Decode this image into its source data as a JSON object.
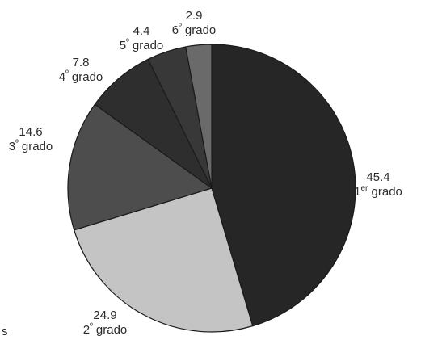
{
  "chart_data": {
    "type": "pie",
    "start_angle_deg": 0,
    "direction": "clockwise",
    "slices": [
      {
        "value": 45.4,
        "value_label": "45.4",
        "name": "1",
        "suffix": "er",
        "rest": " grado",
        "color": "#262626"
      },
      {
        "value": 24.9,
        "value_label": "24.9",
        "name": "2",
        "suffix": "º",
        "rest": " grado",
        "color": "#c4c4c4"
      },
      {
        "value": 14.6,
        "value_label": "14.6",
        "name": "3",
        "suffix": "º",
        "rest": " grado",
        "color": "#4d4d4d"
      },
      {
        "value": 7.8,
        "value_label": "7.8",
        "name": "4",
        "suffix": "º",
        "rest": " grado",
        "color": "#2e2e2e"
      },
      {
        "value": 4.4,
        "value_label": "4.4",
        "name": "5",
        "suffix": "º",
        "rest": " grado",
        "color": "#383838"
      },
      {
        "value": 2.9,
        "value_label": "2.9",
        "name": "6",
        "suffix": "º",
        "rest": " grado",
        "color": "#6a6a6a"
      }
    ]
  },
  "edge_text": "s"
}
